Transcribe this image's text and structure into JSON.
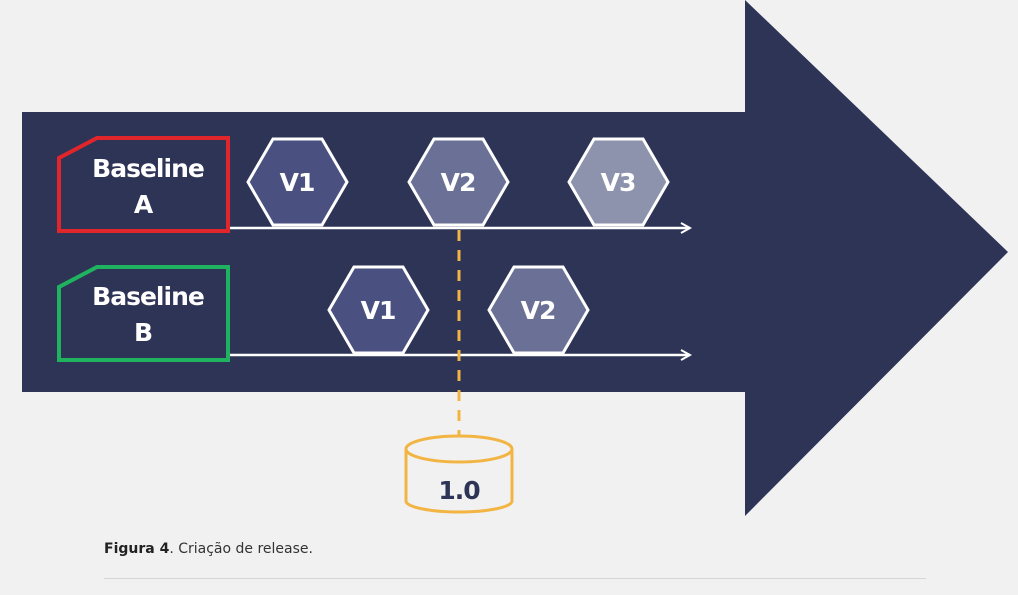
{
  "colors": {
    "background": "#f1f1f1",
    "arrow": "#2e3456",
    "baseline_a_border": "#e0262b",
    "baseline_b_border": "#1fb35f",
    "track_line": "#ffffff",
    "release_connector": "#f2b544",
    "v1_fill": "#4a5180",
    "v2_fill": "#6b7196",
    "v3_fill": "#8d92ad"
  },
  "baselines": [
    {
      "line1": "Baseline",
      "line2": "A",
      "versions": [
        "V1",
        "V2",
        "V3"
      ]
    },
    {
      "line1": "Baseline",
      "line2": "B",
      "versions": [
        "V1",
        "V2"
      ]
    }
  ],
  "release": {
    "label": "1.0"
  },
  "caption": {
    "label": "Figura 4",
    "text": ". Criação de release."
  }
}
